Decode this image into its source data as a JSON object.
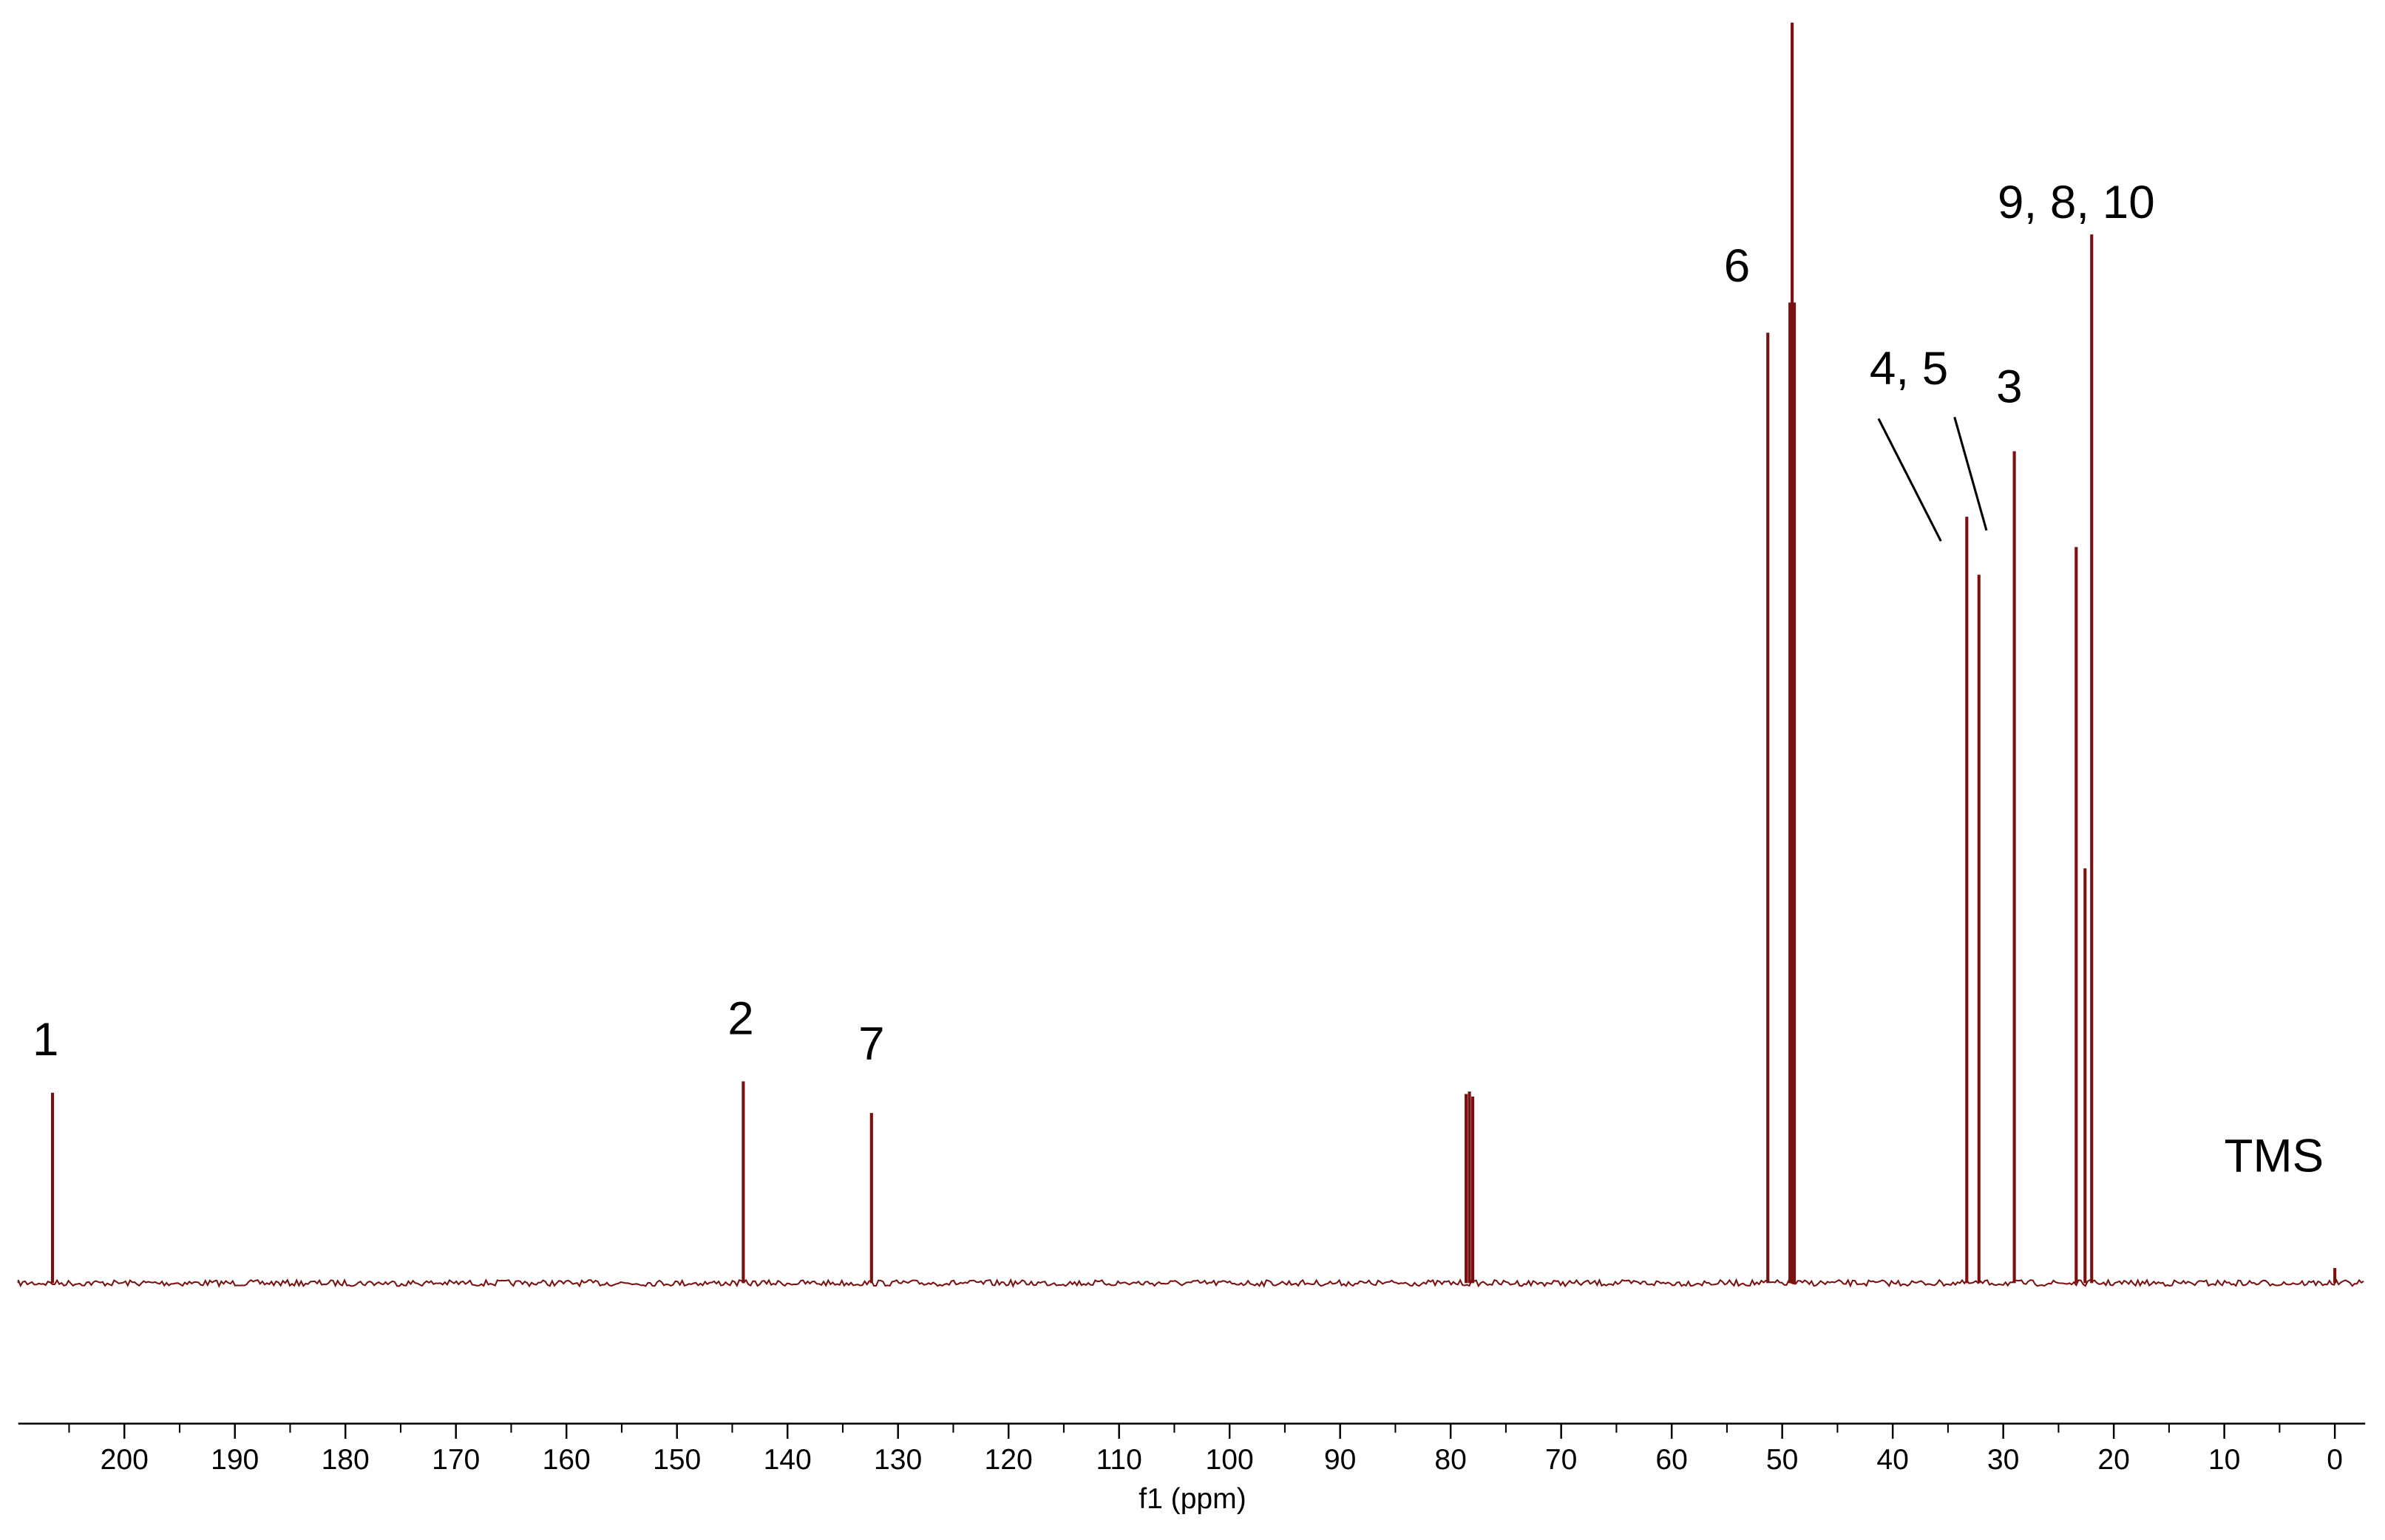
{
  "chart_data": {
    "type": "spectrum",
    "x_label": "f1 (ppm)",
    "x": [
      206.5,
      144.0,
      132.4,
      78.6,
      78.3,
      78.0,
      51.3,
      49.3,
      49.1,
      48.9,
      33.3,
      32.2,
      29.0,
      23.4,
      22.6,
      22.0,
      0.0
    ],
    "values": [
      15.1,
      16.0,
      13.5,
      15.0,
      15.2,
      14.8,
      75.4,
      77.8,
      100,
      77.8,
      60.8,
      56.2,
      66.0,
      58.4,
      32.9,
      83.2,
      1.2
    ],
    "color": "#7a1010",
    "xlim": [
      209.6,
      -2.75
    ],
    "ylim": [
      0,
      100
    ],
    "xticks": [
      200,
      190,
      180,
      170,
      160,
      150,
      140,
      130,
      120,
      110,
      100,
      90,
      80,
      70,
      60,
      50,
      40,
      30,
      20,
      10,
      0
    ],
    "xminorticks": [
      205,
      195,
      185,
      175,
      165,
      155,
      145,
      135,
      125,
      115,
      105,
      95,
      85,
      75,
      65,
      55,
      45,
      35,
      25,
      15,
      5
    ],
    "annotations": [
      "1",
      "2",
      "7",
      "6",
      "4, 5",
      "3",
      "9, 8, 10",
      "TMS"
    ]
  }
}
